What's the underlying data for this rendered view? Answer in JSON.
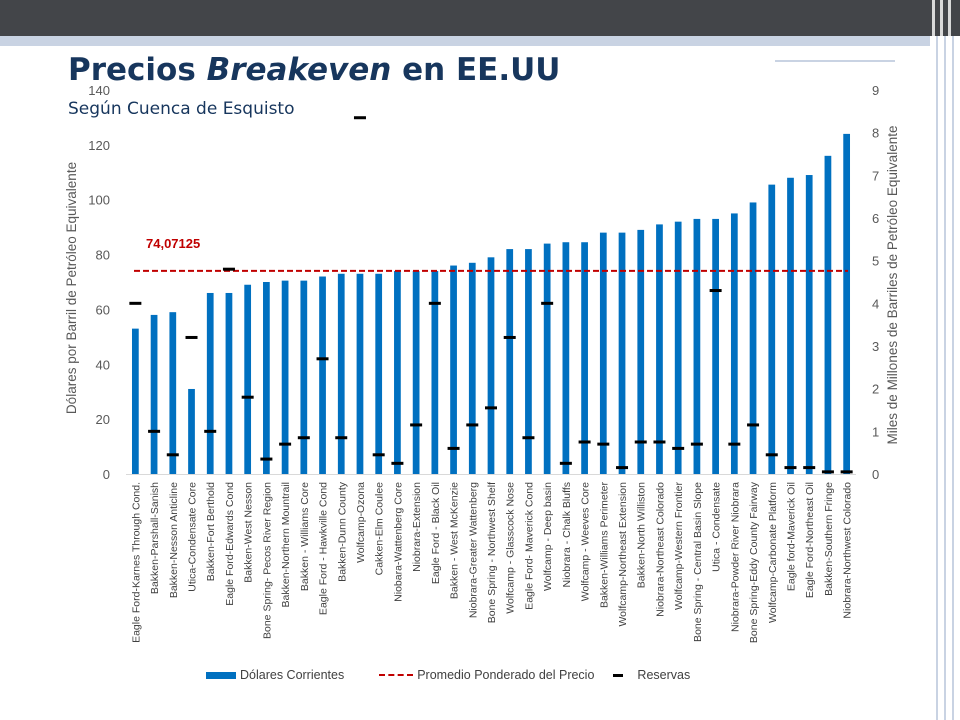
{
  "slide": {
    "title_plain": "Precios",
    "title_italic": "Breakeven",
    "title_rest": "en EE.UU",
    "subtitle": "Según Cuenca de Esquisto"
  },
  "chart_data": {
    "type": "bar",
    "title": "",
    "ylabel": "Dólares por Barril de Petróleo Equivalente",
    "y2label": "Miles de Millones de Barriles de Petróleo Equivalente",
    "ylim": [
      0,
      140
    ],
    "yticks": [
      0,
      20,
      40,
      60,
      80,
      100,
      120,
      140
    ],
    "y2lim": [
      0,
      9
    ],
    "y2ticks": [
      0,
      1,
      2,
      3,
      4,
      5,
      6,
      7,
      8,
      9
    ],
    "grid": false,
    "legend_position": "bottom",
    "colors": {
      "bars": "#0070c0",
      "average_line": "#c00000",
      "reserves": "#000000",
      "average_label": "#c00000"
    },
    "categories": [
      "Eagle Ford-Karnes Through Cond.",
      "Bakken-Parshall-Sanish",
      "Bakken-Nesson Anticline",
      "Utica-Condensate Core",
      "Bakken-Fort Berthold",
      "Eagle Ford-Edwards Cond",
      "Bakken-West Nesson",
      "Bone Spring- Pecos River Region",
      "Bakken-Northern Mountrail",
      "Bakken - Williams Core",
      "Eagle Ford - Hawkville Cond",
      "Bakken-Dunn County",
      "Wolfcamp-Ozona",
      "Cakken-Elm Coulee",
      "Niobara-Wattenberg Core",
      "Niobrara-Extension",
      "Eagle Ford - Black Oil",
      "Bakken - West McKenzie",
      "Niobrara-Greater Wattenberg",
      "Bone Spring - Northwest Shelf",
      "Wolfcamp - Glasscock Nose",
      "Eagle Ford- Maverick Cond",
      "Wolfcamp - Deep basin",
      "Niobrara - Chalk Bluffs",
      "Wolfcamp - Weeves Core",
      "Bakken-Williams Perimeter",
      "Wolfcamp-Northeast Extension",
      "Bakken-North Williston",
      "Niobrara-Northeast Colorado",
      "Wolfcamp-Western Frontier",
      "Bone Spring - Central Basin Slope",
      "Utica - Condensate",
      "Niobrara-Powder River Niobrara",
      "Bone Spring-Eddy County Fairway",
      "Wolfcamp-Carbonate Platform",
      "Eagle ford-Maverick Oil",
      "Eagle Ford-Northeast Oil",
      "Bakken-Southern Fringe",
      "Niobrara-Northwest Colorado"
    ],
    "series": [
      {
        "name": "Dólares Corrientes",
        "type": "bar",
        "axis": "left",
        "values": [
          53,
          58,
          59,
          31,
          66,
          66,
          69,
          70,
          70.5,
          70.5,
          72,
          73,
          73,
          73,
          74,
          74,
          74,
          76,
          77,
          79,
          82,
          82,
          84,
          84.5,
          84.5,
          88,
          88,
          89,
          91,
          92,
          93,
          93,
          95,
          99,
          105.5,
          108,
          109,
          116,
          124
        ]
      },
      {
        "name": "Promedio Ponderado del Precio",
        "type": "line",
        "axis": "left",
        "value": 74.07125,
        "label": "74,07125"
      },
      {
        "name": "Reservas",
        "type": "marker",
        "axis": "right",
        "values": [
          4.0,
          1.0,
          0.45,
          3.2,
          1.0,
          4.8,
          1.8,
          0.35,
          0.7,
          0.85,
          2.7,
          0.85,
          8.35,
          0.45,
          0.25,
          1.15,
          4.0,
          0.6,
          1.15,
          1.55,
          3.2,
          0.85,
          4.0,
          0.25,
          0.75,
          0.7,
          0.15,
          0.75,
          0.75,
          0.6,
          0.7,
          4.3,
          0.7,
          1.15,
          0.45,
          0.15,
          0.15,
          0.05,
          0.05
        ]
      }
    ]
  }
}
